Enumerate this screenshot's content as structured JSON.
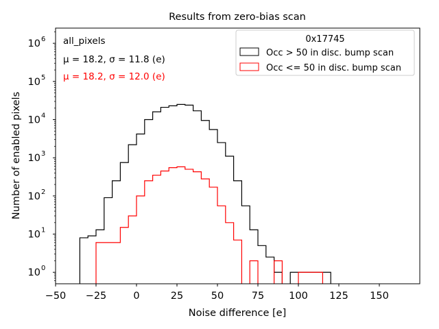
{
  "chart_data": {
    "type": "histogram",
    "title": "Results from zero-bias scan",
    "xlabel": "Noise difference [e]",
    "ylabel": "Number of enabled pixels",
    "xlim": [
      -50,
      175
    ],
    "ylim": [
      0.5,
      2500000
    ],
    "yscale": "log",
    "bin_width": 5,
    "x_ticks": [
      -50,
      -25,
      0,
      25,
      50,
      75,
      100,
      125,
      150
    ],
    "x_tick_labels": [
      "−50",
      "−25",
      "0",
      "25",
      "50",
      "75",
      "100",
      "125",
      "150"
    ],
    "y_ticks": [
      1,
      10,
      100,
      1000,
      10000,
      100000,
      1000000
    ],
    "y_tick_exponents": [
      "0",
      "1",
      "2",
      "3",
      "4",
      "5",
      "6"
    ],
    "y_tick_base": "10",
    "annotations": {
      "label": "all_pixels",
      "black_stats": "μ = 18.2, σ = 11.8 (e)",
      "red_stats": "μ = 18.2, σ = 12.0 (e)"
    },
    "legend": {
      "title": "0x17745",
      "position": "top-right",
      "entries": [
        "Occ > 50 in disc. bump scan",
        "Occ <= 50 in disc. bump scan"
      ]
    },
    "series": [
      {
        "name": "Occ > 50 in disc. bump scan",
        "color": "#000000",
        "bin_edges_start": -35,
        "counts": [
          8,
          9,
          13,
          90,
          250,
          750,
          2200,
          4200,
          10000,
          16000,
          21000,
          23000,
          25000,
          24000,
          17000,
          9500,
          5500,
          2500,
          1100,
          250,
          55,
          13,
          5,
          2.5,
          1,
          0,
          1,
          1,
          1,
          1,
          1
        ]
      },
      {
        "name": "Occ <= 50 in disc. bump scan",
        "color": "#ff0000",
        "bin_edges_start": -25,
        "counts": [
          6,
          6,
          6,
          15,
          30,
          100,
          250,
          350,
          450,
          550,
          580,
          500,
          430,
          280,
          170,
          55,
          20,
          7,
          0,
          2,
          0,
          0,
          2,
          0,
          0,
          1,
          1,
          1
        ]
      }
    ]
  }
}
